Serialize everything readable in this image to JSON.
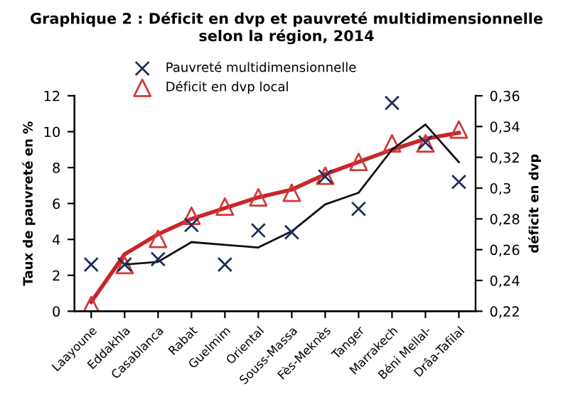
{
  "chart_data": {
    "type": "scatter",
    "title": "Graphique 2 : Déficit en dvp et pauvreté multidimensionnelle\nselon la région, 2014",
    "ylabel": "Taux de pauvreté en %",
    "y2label": "déficit en dvp",
    "categories": [
      "Laayoune",
      "Eddakhla",
      "Casablanca",
      "Rabat",
      "Guelmim",
      "Oriental",
      "Souss-Massa",
      "Fès-Meknès",
      "Tanger",
      "Marrakech",
      "Béni Mellal-",
      "Drâa-Tafilal"
    ],
    "series": [
      {
        "name": "Pauvreté multidimensionnelle",
        "marker": "cross",
        "color": "#1f2d5a",
        "values": [
          2.6,
          2.6,
          2.9,
          4.8,
          2.6,
          4.5,
          4.4,
          7.5,
          5.7,
          11.6,
          9.4,
          7.2
        ]
      },
      {
        "name": "Déficit en dvp local",
        "marker": "triangle",
        "color": "#d03a3a",
        "axis": "y2",
        "values": [
          0.224,
          0.25,
          0.267,
          0.282,
          0.288,
          0.294,
          0.297,
          0.308,
          0.317,
          0.329,
          0.329,
          0.338
        ]
      },
      {
        "type": "line",
        "marker": "none",
        "color": "#111111",
        "values": [
          null,
          2.6,
          2.75,
          3.85,
          3.7,
          3.55,
          4.45,
          5.95,
          6.6,
          9.0,
          10.4,
          8.3
        ]
      },
      {
        "type": "line",
        "marker": "none",
        "color": "#c8262a",
        "axis": "y2",
        "values": [
          0.226,
          0.257,
          0.27,
          0.28,
          0.287,
          0.294,
          0.299,
          0.309,
          0.317,
          0.325,
          0.332,
          0.336
        ]
      }
    ],
    "ylim": [
      0,
      12
    ],
    "yticks": [
      0,
      2,
      4,
      6,
      8,
      10,
      12
    ],
    "y2lim": [
      0.22,
      0.36
    ],
    "y2ticks": [
      {
        "value": 0.22,
        "label": "0,22"
      },
      {
        "value": 0.24,
        "label": "0,24"
      },
      {
        "value": 0.26,
        "label": "0,26"
      },
      {
        "value": 0.28,
        "label": "0,28"
      },
      {
        "value": 0.3,
        "label": "0,3"
      },
      {
        "value": 0.32,
        "label": "0,32"
      },
      {
        "value": 0.34,
        "label": "0,34"
      },
      {
        "value": 0.36,
        "label": "0,36"
      }
    ],
    "grid": false,
    "legend": "top"
  }
}
